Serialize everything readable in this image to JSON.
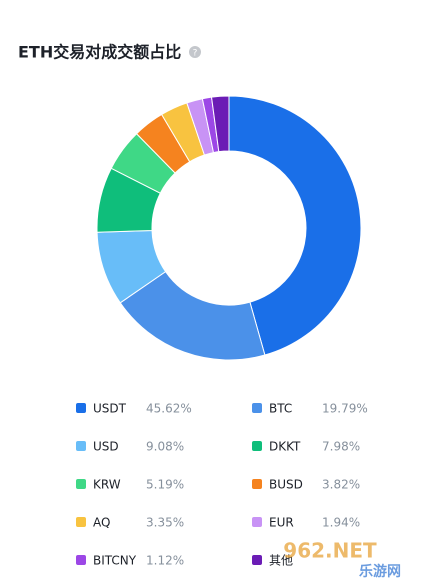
{
  "chart_data": {
    "type": "donut",
    "title": "ETH交易对成交额占比",
    "categories": [
      "USDT",
      "BTC",
      "USD",
      "DKKT",
      "KRW",
      "BUSD",
      "AQ",
      "EUR",
      "BITCNY",
      "其他"
    ],
    "values": [
      45.62,
      19.79,
      9.08,
      7.98,
      5.19,
      3.82,
      3.35,
      1.94,
      1.12,
      2.11
    ],
    "value_labels": [
      "45.62%",
      "19.79%",
      "9.08%",
      "7.98%",
      "5.19%",
      "3.82%",
      "3.35%",
      "1.94%",
      "1.12%",
      null
    ],
    "colors": [
      "#1a6fe8",
      "#4b91e9",
      "#68bdf8",
      "#0fbe7b",
      "#3fd886",
      "#f5831f",
      "#f8c340",
      "#c893f5",
      "#9c47e6",
      "#6b1cb5"
    ]
  },
  "watermark": {
    "text": "962.NET",
    "subtext": "乐游网"
  }
}
